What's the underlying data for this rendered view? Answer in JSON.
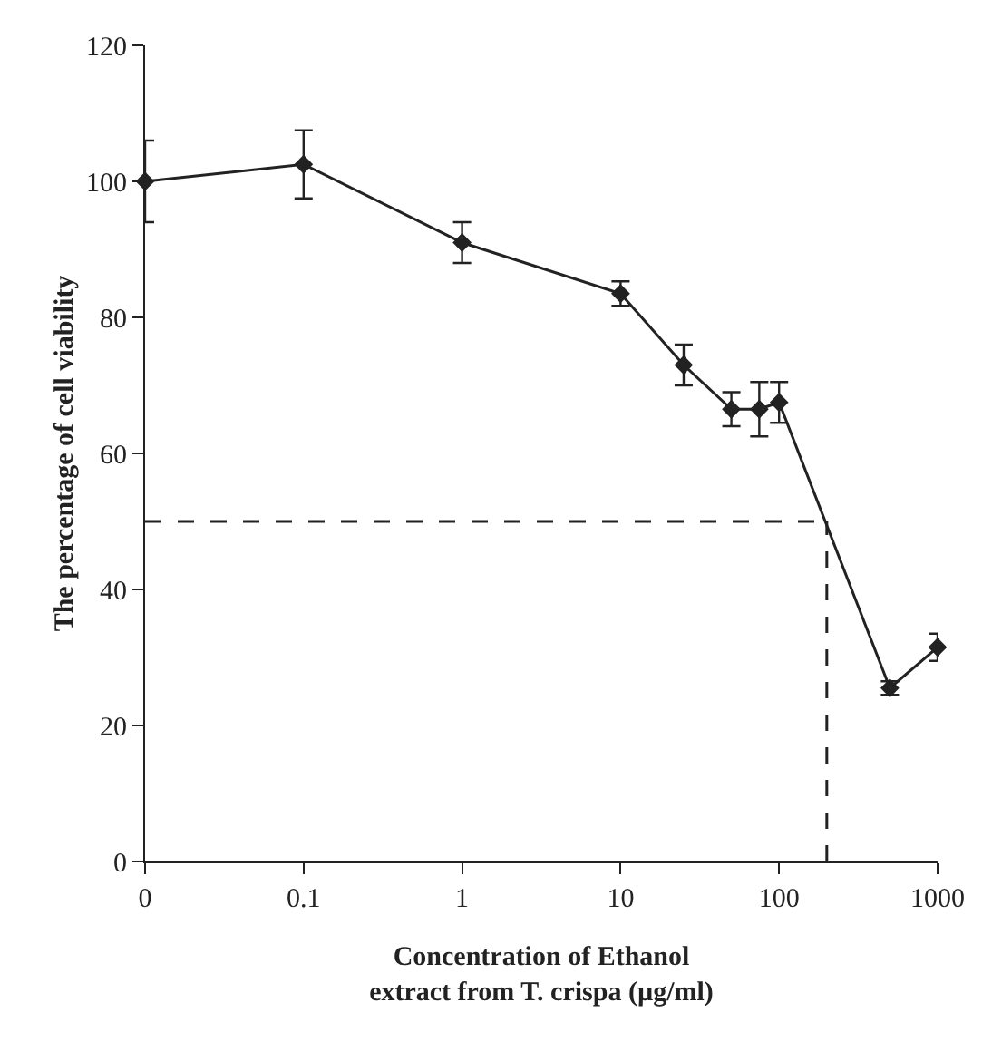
{
  "chart_data": {
    "type": "line",
    "xlabel": "Concentration of Ethanol extract from T. crispa (µg/ml)",
    "ylabel": "The percentage of cell viability",
    "x": [
      0.01,
      0.1,
      1,
      10,
      25,
      50,
      75,
      100,
      500,
      1000
    ],
    "series": [
      {
        "color": "#222222",
        "values": [
          100,
          102.5,
          91,
          83.5,
          73,
          66.5,
          66.5,
          67.5,
          25.5,
          31.5
        ],
        "errors": [
          6,
          5,
          3,
          1.8,
          3,
          2.5,
          4,
          3,
          1,
          2
        ]
      }
    ],
    "log": "x",
    "xlim": [
      0.01,
      1000
    ],
    "xticks": [
      {
        "value": 0.01,
        "label": "0"
      },
      0.1,
      1,
      10,
      100,
      1000
    ],
    "ylim": [
      0,
      120
    ],
    "yticks": [
      0,
      20,
      40,
      60,
      80,
      100,
      120
    ],
    "ref_lines": [
      {
        "axis": "y",
        "value": 50,
        "line_style": "dashed"
      },
      {
        "axis": "x",
        "value": 200,
        "line_style": "dashed"
      }
    ],
    "marker": "diamond",
    "line_style": "solid",
    "grid": false
  }
}
